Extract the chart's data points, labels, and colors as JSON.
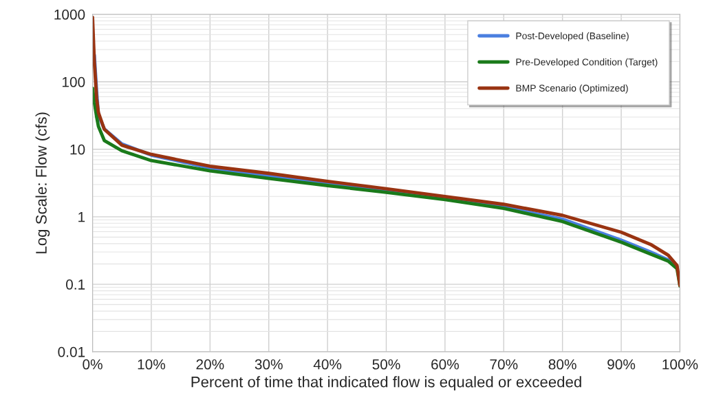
{
  "chart_data": {
    "type": "line",
    "xlabel": "Percent of time that indicated flow is equaled or exceeded",
    "ylabel": "Log Scale: Flow (cfs)",
    "x": [
      0,
      0.3,
      0.7,
      1,
      2,
      5,
      10,
      20,
      30,
      40,
      50,
      60,
      70,
      80,
      90,
      95,
      98,
      99.5,
      100
    ],
    "series": [
      {
        "name": "Post-Developed (Baseline)",
        "color": "#4a7fe0",
        "values": [
          null,
          250,
          70,
          32,
          20,
          12,
          8.2,
          5.3,
          4.0,
          3.1,
          2.45,
          1.9,
          1.4,
          0.92,
          0.45,
          0.3,
          0.23,
          0.18,
          null
        ]
      },
      {
        "name": "Pre-Developed Condition (Target)",
        "color": "#1a7a1a",
        "values": [
          80,
          50,
          30,
          21.8,
          13.5,
          9.5,
          6.8,
          4.8,
          3.7,
          2.9,
          2.3,
          1.8,
          1.33,
          0.85,
          0.42,
          0.28,
          0.22,
          0.17,
          0.094
        ]
      },
      {
        "name": "BMP Scenario (Optimized)",
        "color": "#993311",
        "values": [
          900,
          200,
          56,
          35,
          19.8,
          11.5,
          8.4,
          5.6,
          4.4,
          3.35,
          2.6,
          2.0,
          1.53,
          1.05,
          0.59,
          0.39,
          0.27,
          0.19,
          0.096
        ]
      }
    ],
    "log": "y",
    "xlim": [
      0,
      100
    ],
    "ylim": [
      0.01,
      1000
    ],
    "xticks": [
      {
        "value": 0,
        "label": "0%"
      },
      {
        "value": 10,
        "label": "10%"
      },
      {
        "value": 20,
        "label": "20%"
      },
      {
        "value": 30,
        "label": "30%"
      },
      {
        "value": 40,
        "label": "40%"
      },
      {
        "value": 50,
        "label": "50%"
      },
      {
        "value": 60,
        "label": "60%"
      },
      {
        "value": 70,
        "label": "70%"
      },
      {
        "value": 80,
        "label": "80%"
      },
      {
        "value": 90,
        "label": "90%"
      },
      {
        "value": 100,
        "label": "100%"
      }
    ],
    "yticks": [
      0.01,
      0.1,
      1,
      10,
      100,
      1000
    ],
    "grid": true,
    "legend": "top right",
    "marker": "none",
    "line_style": "solid"
  }
}
